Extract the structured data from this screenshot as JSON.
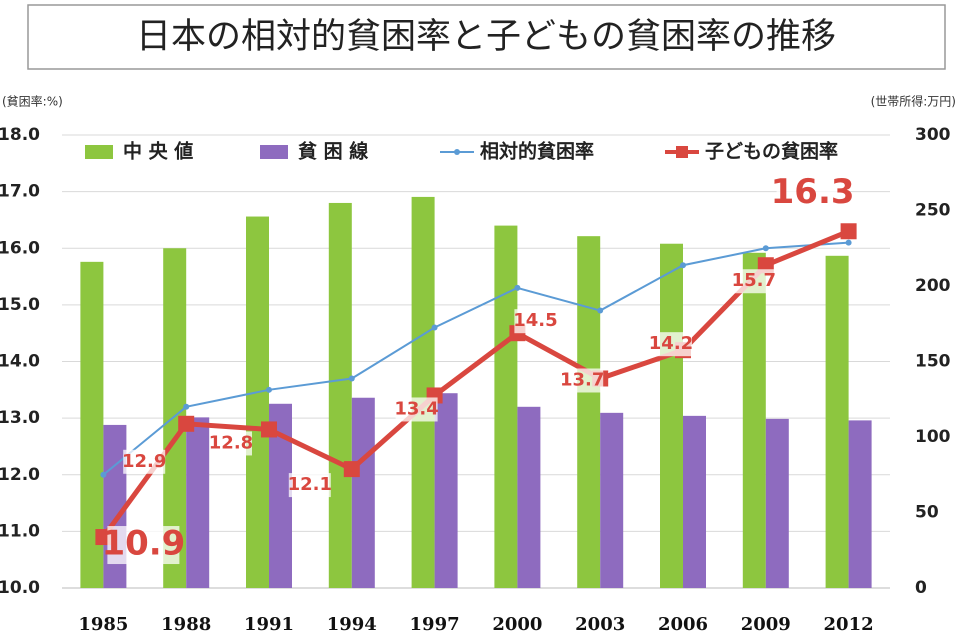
{
  "chart_data": {
    "type": "combo",
    "title": "日本の相対的貧困率と子どもの貧困率の推移",
    "y_label": "(貧困率:%)",
    "y2_label": "(世帯所得:万円)",
    "categories": [
      "1985",
      "1988",
      "1991",
      "1994",
      "1997",
      "2000",
      "2003",
      "2006",
      "2009",
      "2012"
    ],
    "series": [
      {
        "name": "中 央 値",
        "type": "bar",
        "axis": "y2",
        "color": "#8dc63f",
        "values": [
          216,
          225,
          246,
          255,
          259,
          240,
          233,
          228,
          222,
          220
        ]
      },
      {
        "name": "貧 困 線",
        "type": "bar",
        "axis": "y2",
        "color": "#8e6bbf",
        "values": [
          108,
          113,
          122,
          126,
          129,
          120,
          116,
          114,
          112,
          111
        ]
      },
      {
        "name": "相対的貧困率",
        "type": "line",
        "axis": "y",
        "color": "#5b9bd5",
        "values": [
          12.0,
          13.2,
          13.5,
          13.7,
          14.6,
          15.3,
          14.9,
          15.7,
          16.0,
          16.1
        ]
      },
      {
        "name": "子どもの貧困率",
        "type": "line",
        "axis": "y",
        "color": "#d9473f",
        "values": [
          10.9,
          12.9,
          12.8,
          12.1,
          13.4,
          14.5,
          13.7,
          14.2,
          15.7,
          16.3
        ],
        "data_labels": true
      }
    ],
    "ylim": [
      10,
      18
    ],
    "yticks": [
      {
        "value": 10,
        "label": "10.0"
      },
      {
        "value": 11,
        "label": "11.0"
      },
      {
        "value": 12,
        "label": "12.0"
      },
      {
        "value": 13,
        "label": "13.0"
      },
      {
        "value": 14,
        "label": "14.0"
      },
      {
        "value": 15,
        "label": "15.0"
      },
      {
        "value": 16,
        "label": "16.0"
      },
      {
        "value": 17,
        "label": "17.0"
      },
      {
        "value": 18,
        "label": "18.0"
      }
    ],
    "y2lim": [
      0,
      300
    ],
    "y2ticks": [
      0,
      50,
      100,
      150,
      200,
      250,
      300
    ],
    "grid": true
  }
}
